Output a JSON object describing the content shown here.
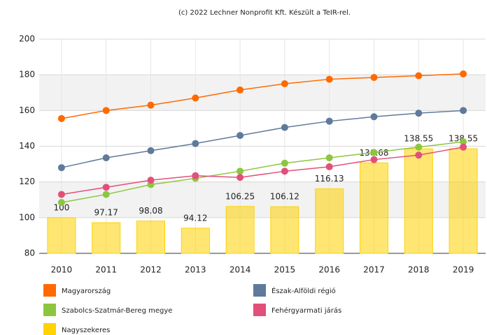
{
  "chart_data": {
    "type": "combo",
    "credit": "(c) 2022 Lechner Nonprofit Kft. Készült a TeIR-rel.",
    "categories": [
      "2010",
      "2011",
      "2012",
      "2013",
      "2014",
      "2015",
      "2016",
      "2017",
      "2018",
      "2019"
    ],
    "ylim": [
      80,
      200
    ],
    "yticks": [
      80,
      100,
      120,
      140,
      160,
      180,
      200
    ],
    "grid": true,
    "series": [
      {
        "name": "Magyarország",
        "type": "line",
        "color": "#ff6a00",
        "values": [
          155.5,
          160,
          163,
          167,
          171.5,
          175,
          177.5,
          178.5,
          179.5,
          180.5
        ]
      },
      {
        "name": "Észak-Alföldi régió",
        "type": "line",
        "color": "#5f7a9a",
        "values": [
          128,
          133.5,
          137.5,
          141.5,
          146,
          150.5,
          154,
          156.5,
          158.5,
          160
        ]
      },
      {
        "name": "Szabolcs-Szatmár-Bereg megye",
        "type": "line",
        "color": "#8cc63f",
        "values": [
          108.5,
          113,
          118.5,
          122,
          126,
          130.5,
          133.5,
          136.5,
          139.5,
          142.5
        ]
      },
      {
        "name": "Fehérgyarmati járás",
        "type": "line",
        "color": "#e2507a",
        "values": [
          113,
          117,
          121,
          123.5,
          122.5,
          126,
          128.5,
          132.5,
          135,
          139.5
        ]
      },
      {
        "name": "Nagyszekeres",
        "type": "bar",
        "color": "#ffd200",
        "data_labels": true,
        "values": [
          100,
          97.17,
          98.08,
          94.12,
          106.25,
          106.12,
          116.13,
          130.68,
          138.55,
          138.55
        ]
      }
    ]
  }
}
